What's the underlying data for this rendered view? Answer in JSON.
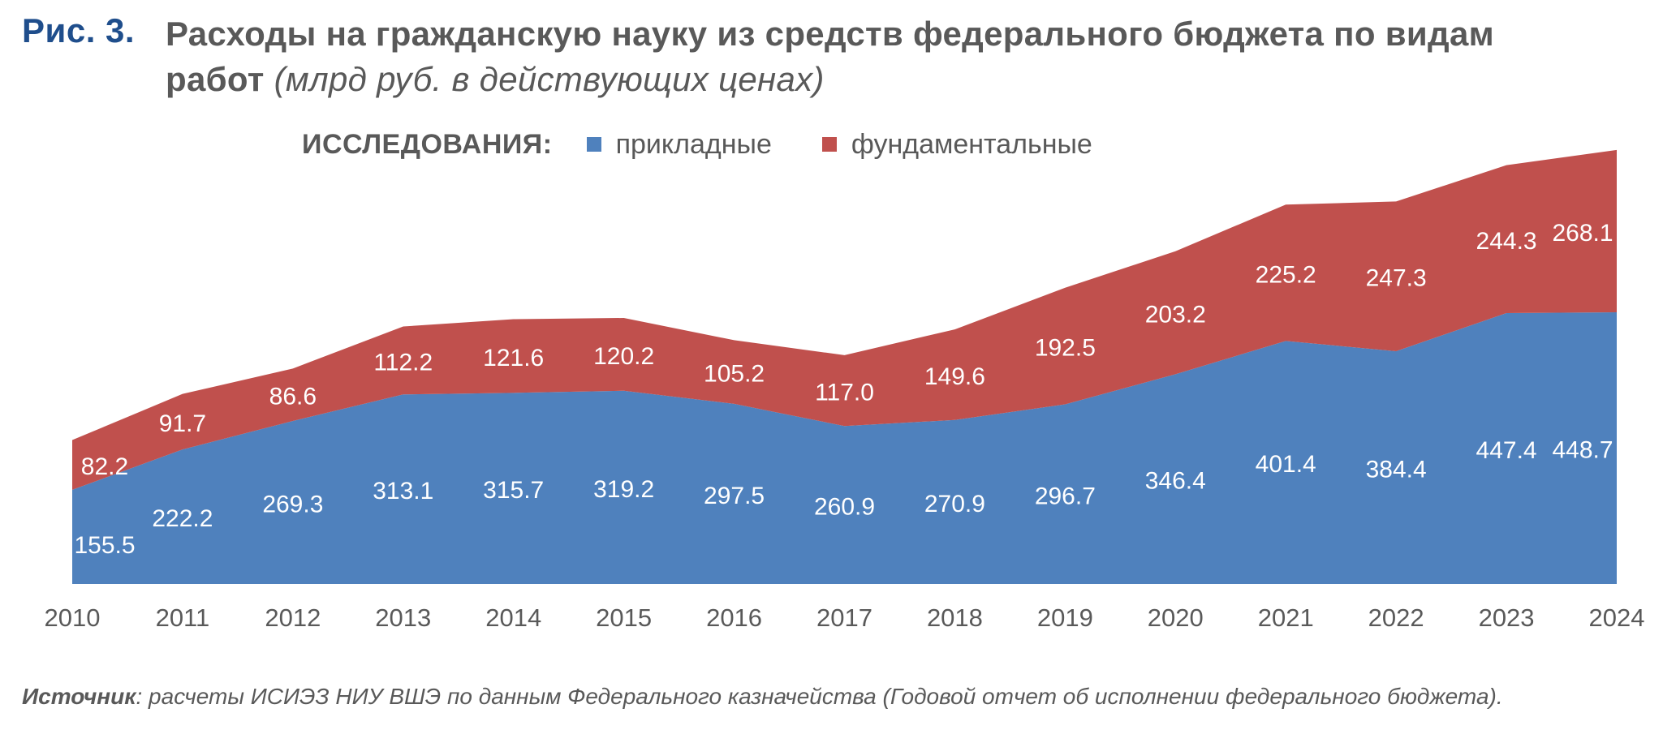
{
  "figure": {
    "label": "Рис. 3.",
    "title_main": "Расходы на гражданскую науку из средств федерального бюджета по видам работ",
    "title_unit": "(млрд руб. в действующих ценах)"
  },
  "legend": {
    "title": "ИССЛЕДОВАНИЯ:"
  },
  "source": {
    "label": "Источник",
    "text": ": расчеты ИСИЭЗ НИУ ВШЭ по данным Федерального казначейства (Годовой отчет об исполнении федерального бюджета)."
  },
  "colors": {
    "applied": "#4f81bd",
    "fundamental": "#c0504d",
    "figure_label": "#1f4e8c",
    "text": "#595959"
  },
  "chart_data": {
    "type": "area",
    "stacked": true,
    "x": [
      "2010",
      "2011",
      "2012",
      "2013",
      "2014",
      "2015",
      "2016",
      "2017",
      "2018",
      "2019",
      "2020",
      "2021",
      "2022",
      "2023",
      "2024"
    ],
    "series": [
      {
        "name": "прикладные",
        "color": "#4f81bd",
        "values": [
          155.5,
          222.2,
          269.3,
          313.1,
          315.7,
          319.2,
          297.5,
          260.9,
          270.9,
          296.7,
          346.4,
          401.4,
          384.4,
          447.4,
          448.7
        ]
      },
      {
        "name": "фундаментальные",
        "color": "#c0504d",
        "values": [
          82.2,
          91.7,
          86.6,
          112.2,
          121.6,
          120.2,
          105.2,
          117.0,
          149.6,
          192.5,
          203.2,
          225.2,
          247.3,
          244.3,
          268.1
        ]
      }
    ],
    "legend_position": "top",
    "grid": false,
    "data_labels": true,
    "ylim": [
      0,
      730
    ]
  }
}
